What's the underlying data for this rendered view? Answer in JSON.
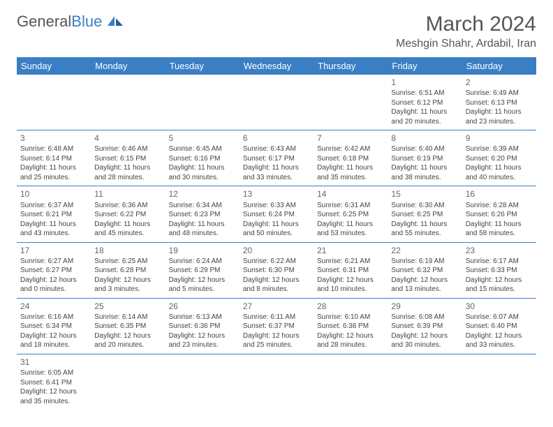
{
  "logo": {
    "text1": "General",
    "text2": "Blue"
  },
  "title": "March 2024",
  "location": "Meshgin Shahr, Ardabil, Iran",
  "colors": {
    "header_bg": "#3a7fc4",
    "header_text": "#ffffff",
    "border": "#3a7fc4",
    "title_color": "#555555",
    "cell_text": "#444444"
  },
  "dayNames": [
    "Sunday",
    "Monday",
    "Tuesday",
    "Wednesday",
    "Thursday",
    "Friday",
    "Saturday"
  ],
  "startOffset": 5,
  "days": [
    {
      "n": 1,
      "sr": "6:51 AM",
      "ss": "6:12 PM",
      "dl": "11 hours and 20 minutes."
    },
    {
      "n": 2,
      "sr": "6:49 AM",
      "ss": "6:13 PM",
      "dl": "11 hours and 23 minutes."
    },
    {
      "n": 3,
      "sr": "6:48 AM",
      "ss": "6:14 PM",
      "dl": "11 hours and 25 minutes."
    },
    {
      "n": 4,
      "sr": "6:46 AM",
      "ss": "6:15 PM",
      "dl": "11 hours and 28 minutes."
    },
    {
      "n": 5,
      "sr": "6:45 AM",
      "ss": "6:16 PM",
      "dl": "11 hours and 30 minutes."
    },
    {
      "n": 6,
      "sr": "6:43 AM",
      "ss": "6:17 PM",
      "dl": "11 hours and 33 minutes."
    },
    {
      "n": 7,
      "sr": "6:42 AM",
      "ss": "6:18 PM",
      "dl": "11 hours and 35 minutes."
    },
    {
      "n": 8,
      "sr": "6:40 AM",
      "ss": "6:19 PM",
      "dl": "11 hours and 38 minutes."
    },
    {
      "n": 9,
      "sr": "6:39 AM",
      "ss": "6:20 PM",
      "dl": "11 hours and 40 minutes."
    },
    {
      "n": 10,
      "sr": "6:37 AM",
      "ss": "6:21 PM",
      "dl": "11 hours and 43 minutes."
    },
    {
      "n": 11,
      "sr": "6:36 AM",
      "ss": "6:22 PM",
      "dl": "11 hours and 45 minutes."
    },
    {
      "n": 12,
      "sr": "6:34 AM",
      "ss": "6:23 PM",
      "dl": "11 hours and 48 minutes."
    },
    {
      "n": 13,
      "sr": "6:33 AM",
      "ss": "6:24 PM",
      "dl": "11 hours and 50 minutes."
    },
    {
      "n": 14,
      "sr": "6:31 AM",
      "ss": "6:25 PM",
      "dl": "11 hours and 53 minutes."
    },
    {
      "n": 15,
      "sr": "6:30 AM",
      "ss": "6:25 PM",
      "dl": "11 hours and 55 minutes."
    },
    {
      "n": 16,
      "sr": "6:28 AM",
      "ss": "6:26 PM",
      "dl": "11 hours and 58 minutes."
    },
    {
      "n": 17,
      "sr": "6:27 AM",
      "ss": "6:27 PM",
      "dl": "12 hours and 0 minutes."
    },
    {
      "n": 18,
      "sr": "6:25 AM",
      "ss": "6:28 PM",
      "dl": "12 hours and 3 minutes."
    },
    {
      "n": 19,
      "sr": "6:24 AM",
      "ss": "6:29 PM",
      "dl": "12 hours and 5 minutes."
    },
    {
      "n": 20,
      "sr": "6:22 AM",
      "ss": "6:30 PM",
      "dl": "12 hours and 8 minutes."
    },
    {
      "n": 21,
      "sr": "6:21 AM",
      "ss": "6:31 PM",
      "dl": "12 hours and 10 minutes."
    },
    {
      "n": 22,
      "sr": "6:19 AM",
      "ss": "6:32 PM",
      "dl": "12 hours and 13 minutes."
    },
    {
      "n": 23,
      "sr": "6:17 AM",
      "ss": "6:33 PM",
      "dl": "12 hours and 15 minutes."
    },
    {
      "n": 24,
      "sr": "6:16 AM",
      "ss": "6:34 PM",
      "dl": "12 hours and 18 minutes."
    },
    {
      "n": 25,
      "sr": "6:14 AM",
      "ss": "6:35 PM",
      "dl": "12 hours and 20 minutes."
    },
    {
      "n": 26,
      "sr": "6:13 AM",
      "ss": "6:36 PM",
      "dl": "12 hours and 23 minutes."
    },
    {
      "n": 27,
      "sr": "6:11 AM",
      "ss": "6:37 PM",
      "dl": "12 hours and 25 minutes."
    },
    {
      "n": 28,
      "sr": "6:10 AM",
      "ss": "6:38 PM",
      "dl": "12 hours and 28 minutes."
    },
    {
      "n": 29,
      "sr": "6:08 AM",
      "ss": "6:39 PM",
      "dl": "12 hours and 30 minutes."
    },
    {
      "n": 30,
      "sr": "6:07 AM",
      "ss": "6:40 PM",
      "dl": "12 hours and 33 minutes."
    },
    {
      "n": 31,
      "sr": "6:05 AM",
      "ss": "6:41 PM",
      "dl": "12 hours and 35 minutes."
    }
  ],
  "labels": {
    "sunrise": "Sunrise:",
    "sunset": "Sunset:",
    "daylight": "Daylight:"
  }
}
